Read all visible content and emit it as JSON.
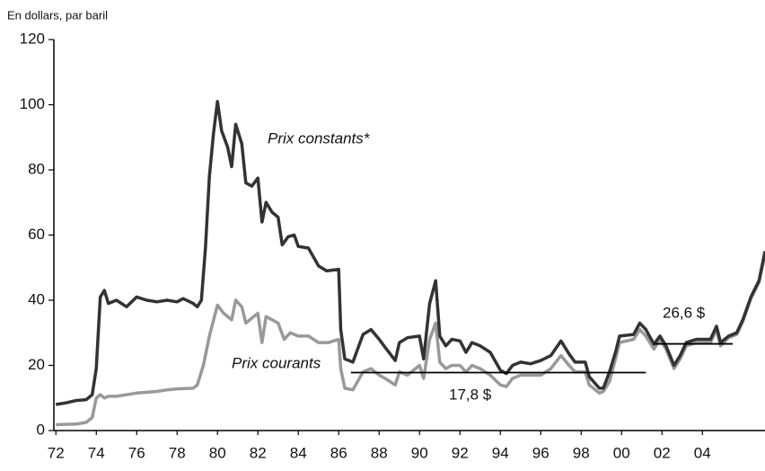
{
  "chart_data": {
    "type": "line",
    "y_label": "En dollars, par baril",
    "xlim": [
      71.9,
      107.1
    ],
    "xticks": [
      72,
      74,
      76,
      78,
      80,
      82,
      84,
      86,
      88,
      90,
      92,
      94,
      96,
      98,
      {
        "value": 100,
        "label": "00"
      },
      {
        "value": 102,
        "label": "02"
      },
      {
        "value": 104,
        "label": "04"
      }
    ],
    "ylim": [
      0,
      120
    ],
    "yticks": [
      0,
      20,
      40,
      60,
      80,
      100,
      120
    ],
    "series": [
      {
        "name": "Prix constants*",
        "color": "#333333",
        "x": [
          72,
          72.5,
          73,
          73.5,
          73.8,
          74,
          74.2,
          74.4,
          74.6,
          75,
          75.5,
          76,
          76.5,
          77,
          77.5,
          78,
          78.3,
          78.8,
          79,
          79.2,
          79.4,
          79.6,
          79.8,
          80,
          80.2,
          80.5,
          80.7,
          80.9,
          81.2,
          81.4,
          81.7,
          82,
          82.2,
          82.4,
          82.7,
          83,
          83.2,
          83.5,
          83.8,
          84,
          84.5,
          85,
          85.4,
          86,
          86.1,
          86.3,
          86.7,
          87.2,
          87.6,
          88,
          88.3,
          88.8,
          89,
          89.4,
          90,
          90.2,
          90.5,
          90.8,
          91,
          91.3,
          91.6,
          92,
          92.3,
          92.6,
          93,
          93.5,
          94,
          94.3,
          94.6,
          95,
          95.5,
          96,
          96.5,
          97,
          97.4,
          97.7,
          98.2,
          98.4,
          98.9,
          99.1,
          99.4,
          99.7,
          99.9,
          100.6,
          100.9,
          101.2,
          101.6,
          101.9,
          102.2,
          102.6,
          102.9,
          103.2,
          103.7,
          104.4,
          104.7,
          104.9,
          105.3,
          105.7,
          106,
          106.4,
          106.8,
          107.1
        ],
        "values": [
          8,
          8.5,
          9.2,
          9.5,
          11,
          19,
          41,
          43,
          39,
          40,
          38,
          41,
          40,
          39.5,
          40,
          39.5,
          40.5,
          39,
          38,
          40,
          56,
          78,
          91,
          101,
          92,
          87,
          81,
          94,
          88,
          76,
          75,
          77.5,
          64,
          70,
          67,
          65.5,
          57,
          59.5,
          60,
          56.5,
          56,
          50.5,
          49,
          49.5,
          31,
          22,
          21,
          29.5,
          31,
          28,
          25.5,
          21.5,
          27,
          28.5,
          29,
          22,
          39,
          46,
          29,
          26,
          28,
          27.5,
          24,
          27,
          26,
          24,
          18.5,
          17.5,
          20,
          21,
          20.5,
          21.5,
          23,
          27.5,
          23.5,
          21,
          21,
          16.5,
          13,
          13,
          18,
          24,
          29,
          29.5,
          33,
          31,
          26.5,
          29,
          26,
          20,
          23,
          27,
          28,
          28,
          32,
          27,
          29,
          30,
          34,
          41,
          46,
          55
        ]
      },
      {
        "name": "Prix courants",
        "color": "#999999",
        "x": [
          72,
          73,
          73.5,
          73.8,
          74,
          74.2,
          74.4,
          74.6,
          75,
          76,
          77,
          77.5,
          78,
          78.8,
          79,
          79.3,
          79.6,
          80,
          80.3,
          80.7,
          80.9,
          81.2,
          81.4,
          82,
          82.2,
          82.4,
          83,
          83.3,
          83.6,
          84,
          84.5,
          85,
          85.5,
          86,
          86.1,
          86.3,
          86.7,
          87.2,
          87.6,
          88,
          88.3,
          88.8,
          89,
          89.4,
          90,
          90.2,
          90.5,
          90.8,
          91,
          91.3,
          91.6,
          92,
          92.3,
          92.6,
          93,
          93.5,
          94,
          94.3,
          94.6,
          95,
          95.5,
          96,
          96.5,
          97,
          97.4,
          97.7,
          98.2,
          98.4,
          98.9,
          99.1,
          99.4,
          99.7,
          99.9,
          100.6,
          100.9,
          101.2,
          101.6,
          101.9,
          102.2,
          102.6,
          102.9,
          103.2,
          103.7,
          104.4,
          104.7,
          104.9,
          105.3,
          105.7,
          106,
          106.4,
          106.8,
          107.1
        ],
        "values": [
          1.8,
          2,
          2.5,
          4,
          10,
          11,
          10,
          10.5,
          10.5,
          11.5,
          12,
          12.5,
          12.8,
          13,
          14,
          20,
          29,
          38.5,
          36,
          34,
          40,
          38,
          33,
          36,
          27,
          35,
          33,
          28,
          30,
          29,
          29,
          27,
          27,
          28,
          19,
          13,
          12.5,
          18,
          19,
          17,
          16,
          14,
          18,
          17,
          20,
          16,
          28,
          33,
          21,
          19,
          20,
          20,
          18,
          20,
          19,
          17,
          14,
          13.5,
          16,
          17,
          17,
          17,
          19,
          23,
          20,
          18,
          18,
          14,
          11.5,
          12,
          15,
          22,
          27,
          28,
          31,
          29,
          25,
          28,
          25,
          19,
          22,
          26,
          27,
          27,
          31,
          26,
          28.5,
          29.5,
          33.5,
          40.5,
          45.5,
          54
        ]
      }
    ],
    "reference_lines": [
      {
        "label": "17,8 $",
        "value": 17.8,
        "x": [
          86.6,
          101.2
        ]
      },
      {
        "label": "26,6 $",
        "value": 26.6,
        "x": [
          101.6,
          105.5
        ]
      }
    ]
  }
}
